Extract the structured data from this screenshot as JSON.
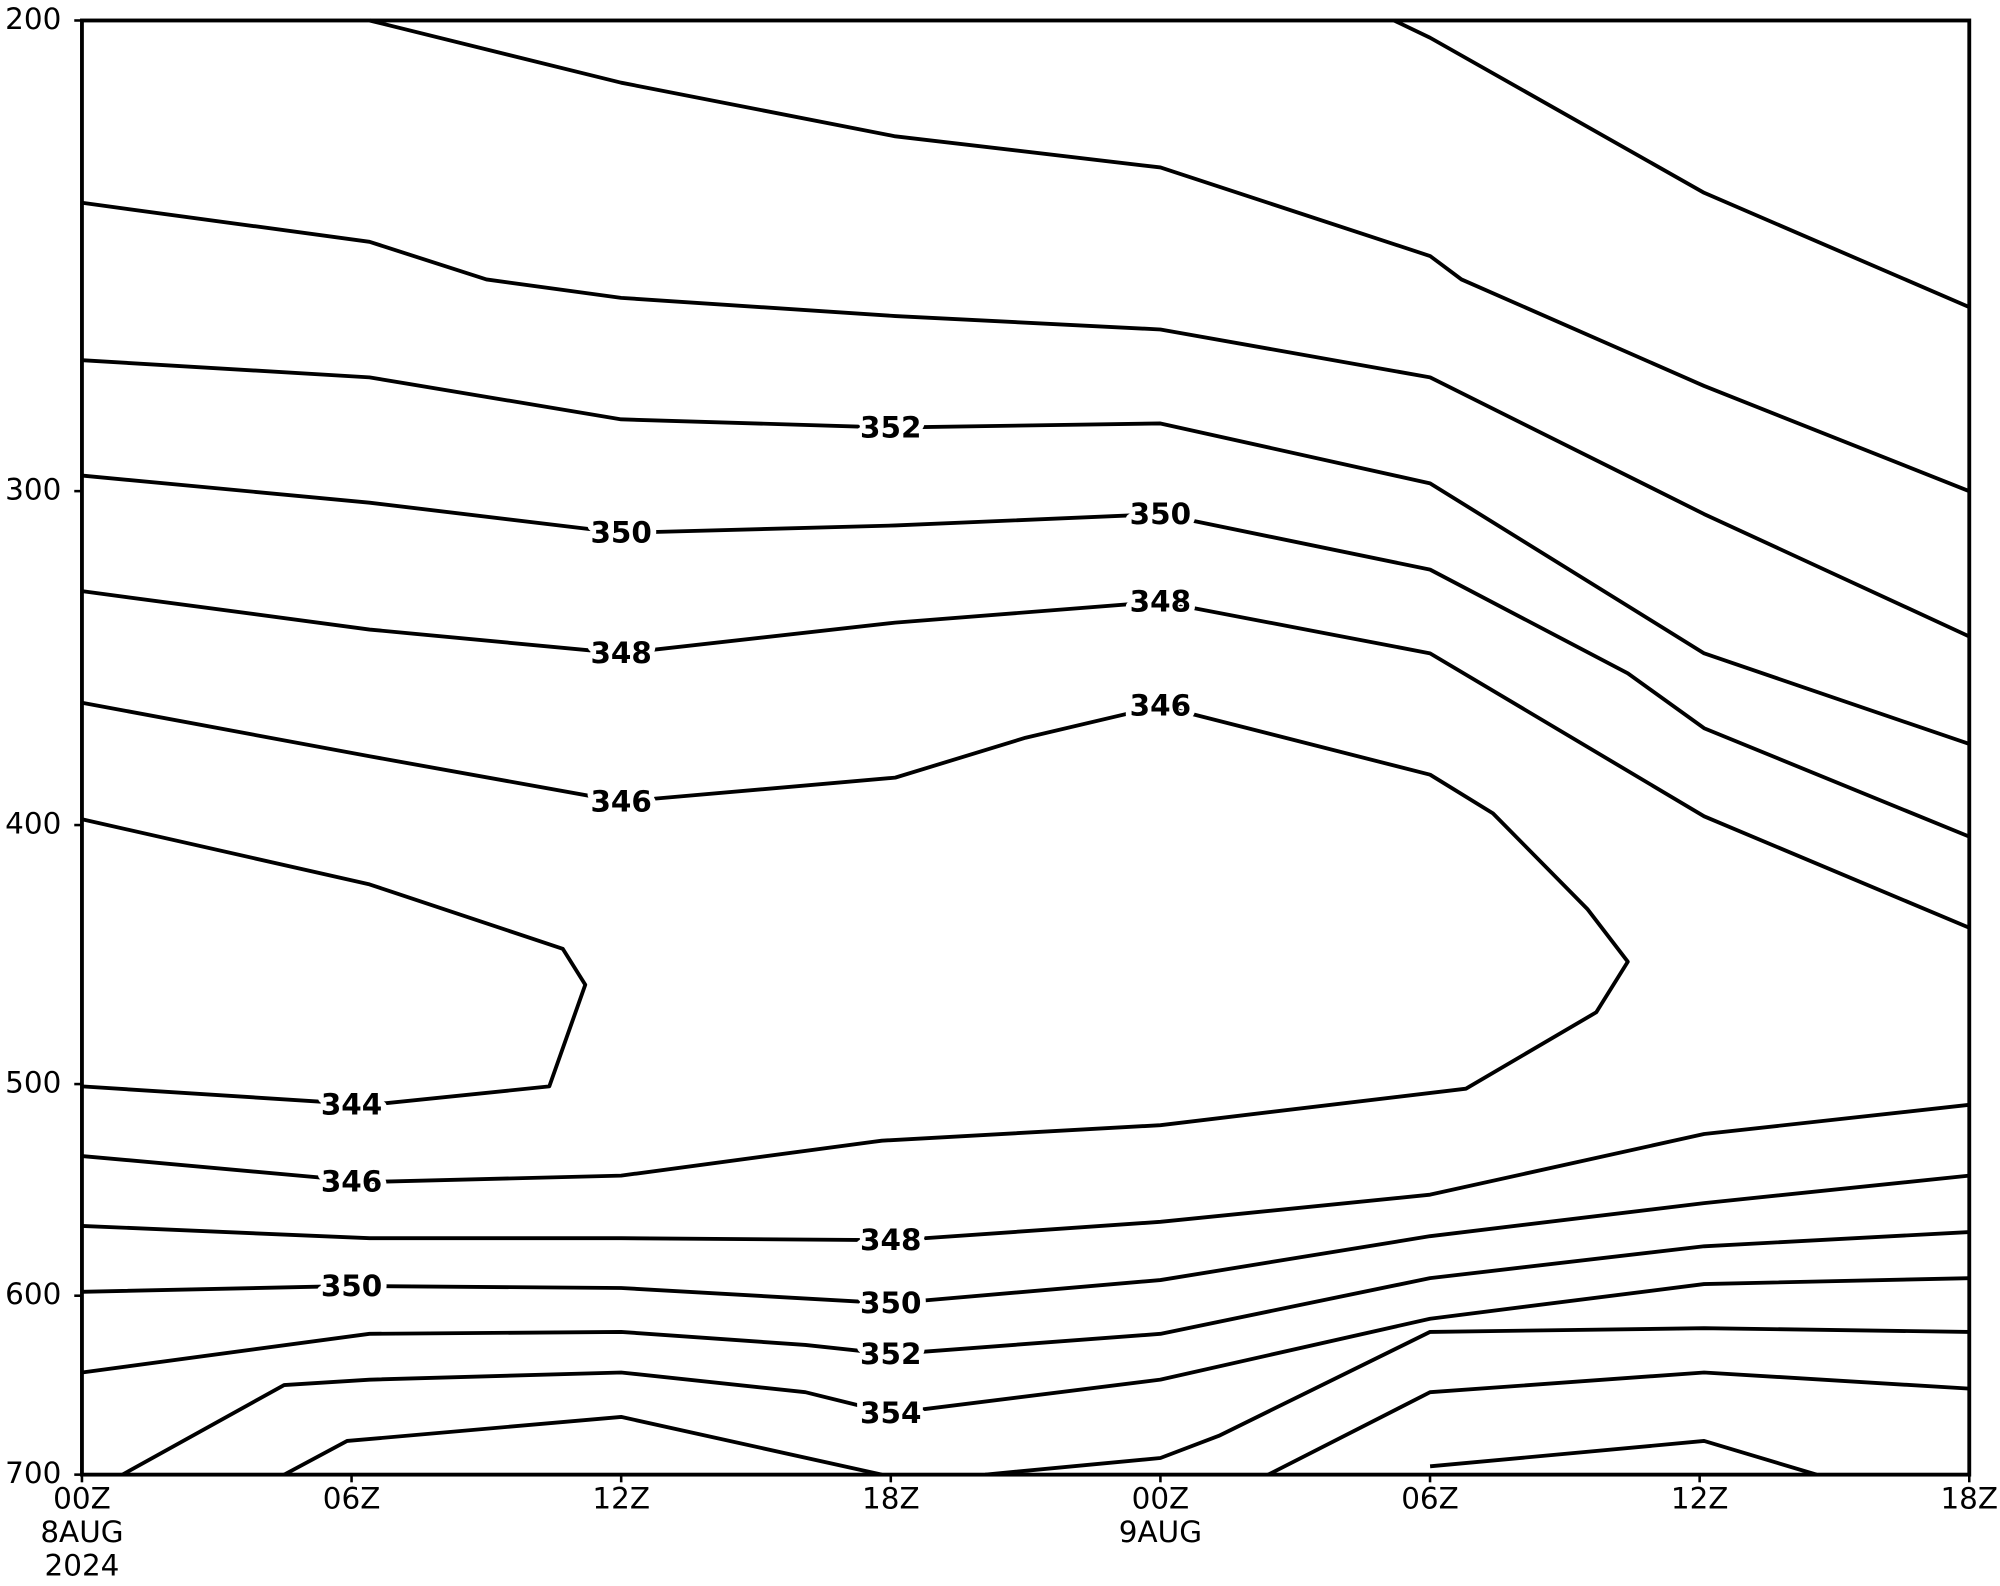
{
  "chart_data": {
    "type": "contour",
    "xlim": [
      0,
      42
    ],
    "xticks": [
      {
        "value": 0,
        "label": "00Z"
      },
      {
        "value": 6,
        "label": "06Z"
      },
      {
        "value": 12,
        "label": "12Z"
      },
      {
        "value": 18,
        "label": "18Z"
      },
      {
        "value": 24,
        "label": "00Z"
      },
      {
        "value": 30,
        "label": "06Z"
      },
      {
        "value": 36,
        "label": "12Z"
      },
      {
        "value": 42,
        "label": "18Z"
      }
    ],
    "x_date_labels": [
      {
        "value": 0,
        "lines": [
          "8AUG",
          "2024"
        ]
      },
      {
        "value": 24,
        "lines": [
          "9AUG"
        ]
      }
    ],
    "ylim": [
      700,
      200
    ],
    "y_scale": "log",
    "yticks": [
      200,
      300,
      400,
      500,
      600,
      700
    ],
    "color": "#000000",
    "contours": [
      {
        "x": [
          29.2,
          30.0,
          36.1,
          42
        ],
        "y": [
          200,
          203,
          232,
          256
        ]
      },
      {
        "x": [
          6.4,
          12.0,
          18.1,
          24.0,
          30.0,
          30.7,
          36.1,
          42
        ],
        "y": [
          200,
          211,
          221,
          227,
          245,
          250,
          274,
          300
        ]
      },
      {
        "x": [
          0,
          6.4,
          9.0,
          12.0,
          18.1,
          24.0,
          30.0,
          36.1,
          42
        ],
        "y": [
          234,
          242,
          250,
          254,
          258,
          261,
          272,
          306,
          340
        ]
      },
      {
        "level": 352,
        "x": [
          0,
          6.4,
          12.0,
          18.0,
          24.0,
          30.0,
          36.1,
          42
        ],
        "y": [
          268,
          272,
          282,
          284,
          283,
          298,
          345,
          373
        ],
        "labels": [
          {
            "x": 18.0,
            "y": 284
          }
        ]
      },
      {
        "level": 350,
        "x": [
          0,
          6.4,
          12.0,
          18.1,
          24.0,
          30.0,
          34.4,
          36.1,
          42
        ],
        "y": [
          296,
          303,
          311,
          309,
          306,
          321,
          351,
          368,
          404
        ],
        "labels": [
          {
            "x": 12.0,
            "y": 311
          },
          {
            "x": 24.0,
            "y": 306
          }
        ]
      },
      {
        "level": 348,
        "x": [
          0,
          6.4,
          12.0,
          18.1,
          24.0,
          30.0,
          36.1,
          42
        ],
        "y": [
          327,
          338,
          345,
          336,
          330,
          345,
          397,
          437
        ],
        "labels": [
          {
            "x": 12.0,
            "y": 345
          },
          {
            "x": 24.0,
            "y": 330
          }
        ]
      },
      {
        "level": 346,
        "x": [
          0,
          6.4,
          12.0,
          18.1,
          21.0,
          24.0,
          30.0,
          31.4,
          33.5,
          34.4,
          33.7,
          30.8,
          24.0,
          17.8,
          12.0,
          6.4,
          0
        ],
        "y": [
          360,
          377,
          392,
          384,
          371,
          361,
          383,
          396,
          430,
          450,
          470,
          502,
          518,
          525,
          541,
          544,
          532
        ],
        "labels": [
          {
            "x": 12.0,
            "y": 392
          },
          {
            "x": 24.0,
            "y": 361
          },
          {
            "x": 6.0,
            "y": 544
          }
        ]
      },
      {
        "level": 344,
        "x": [
          0,
          6.4,
          10.7,
          11.2,
          10.4,
          6.4,
          0
        ],
        "y": [
          398,
          421,
          445,
          459,
          501,
          509,
          501
        ],
        "labels": [
          {
            "x": 6.0,
            "y": 509
          }
        ]
      },
      {
        "level": 348,
        "x": [
          42,
          36.1,
          30.0,
          24.0,
          18.1,
          12.0,
          6.4,
          0
        ],
        "y": [
          509,
          522,
          550,
          563,
          572,
          571,
          571,
          565
        ],
        "labels": [
          {
            "x": 18.0,
            "y": 572
          }
        ]
      },
      {
        "level": 350,
        "x": [
          0,
          6.0,
          12.0,
          18.0,
          24.0,
          30.0,
          36.1,
          42
        ],
        "y": [
          598,
          595,
          596,
          604,
          592,
          570,
          554,
          541
        ],
        "labels": [
          {
            "x": 6.0,
            "y": 595
          },
          {
            "x": 18.0,
            "y": 604
          }
        ]
      },
      {
        "level": 352,
        "x": [
          0,
          6.4,
          12.0,
          16.1,
          18.0,
          24.0,
          30.0,
          36.1,
          42
        ],
        "y": [
          641,
          620,
          619,
          626,
          631,
          620,
          591,
          575,
          568
        ],
        "labels": [
          {
            "x": 18.0,
            "y": 631
          }
        ]
      },
      {
        "level": 354,
        "x": [
          0.9,
          4.5,
          6.4,
          12.0,
          16.1,
          18.0,
          24.0,
          30.0,
          36.1,
          42
        ],
        "y": [
          700,
          648,
          645,
          641,
          652,
          664,
          645,
          612,
          594,
          591
        ],
        "labels": [
          {
            "x": 18.0,
            "y": 664
          }
        ]
      },
      {
        "x": [
          4.5,
          5.9,
          12.0,
          17.8
        ],
        "y": [
          700,
          680,
          666,
          700
        ]
      },
      {
        "x": [
          20.1,
          24.0,
          25.3,
          30.0,
          36.1,
          42
        ],
        "y": [
          700,
          690,
          677,
          619,
          617,
          619
        ]
      },
      {
        "x": [
          26.4,
          30.0,
          36.1,
          42
        ],
        "y": [
          700,
          652,
          641,
          650
        ]
      },
      {
        "x": [
          30.0,
          36.1,
          38.6
        ],
        "y": [
          695,
          680,
          700
        ]
      }
    ]
  }
}
